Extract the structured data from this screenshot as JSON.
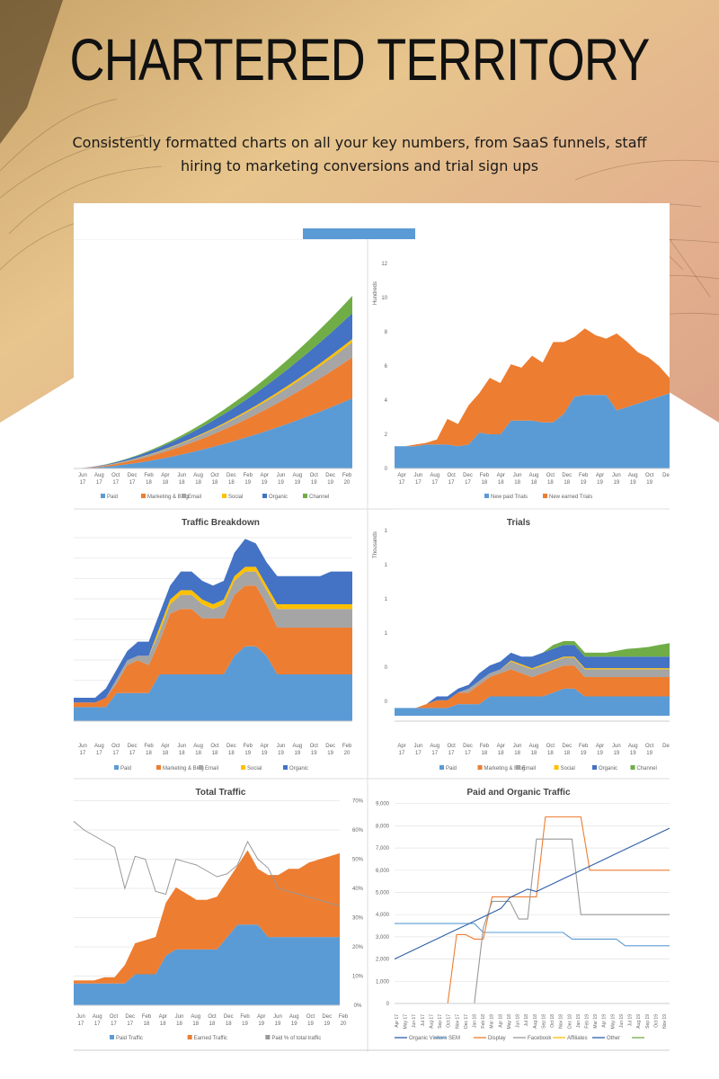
{
  "headline": "CHARTERED TERRITORY",
  "subtitle": "Consistently formatted charts on all your key numbers, from SaaS funnels, staff hiring to marketing conversions and trial sign ups",
  "colors": {
    "paid": "#5b9bd5",
    "marketing": "#ed7d31",
    "email": "#a5a5a5",
    "social": "#ffc000",
    "organic": "#4472c4",
    "channel": "#70ad47",
    "line_gray": "#999999",
    "background": "#d9b18a"
  },
  "panels": {
    "p1": {
      "title": "",
      "xticks": [
        "Jun 17",
        "Aug 17",
        "Oct 17",
        "Dec 17",
        "Feb 18",
        "Apr 18",
        "Jun 18",
        "Aug 18",
        "Oct 18",
        "Dec 18",
        "Feb 19",
        "Apr 19",
        "Jun 19",
        "Aug 19",
        "Oct 19",
        "Dec 19",
        "Feb 20"
      ],
      "legend": [
        "Paid",
        "Marketing & Blog",
        "Email",
        "Social",
        "Organic",
        "Channel"
      ]
    },
    "p2": {
      "title": "",
      "ylabel": "Hundreds",
      "yticks": [
        "0",
        "2",
        "4",
        "6",
        "8",
        "10",
        "12"
      ],
      "xticks": [
        "Apr 17",
        "Jun 17",
        "Aug 17",
        "Oct 17",
        "Dec 17",
        "Feb 18",
        "Apr 18",
        "Jun 18",
        "Aug 18",
        "Oct 18",
        "Dec 18",
        "Feb 19",
        "Apr 19",
        "Jun 19",
        "Aug 19",
        "Oct 19",
        "De"
      ],
      "legend": [
        "New paid Trials",
        "New earned Trials"
      ]
    },
    "p3": {
      "title": "Traffic Breakdown",
      "xticks": [
        "Jun 17",
        "Aug 17",
        "Oct 17",
        "Dec 17",
        "Feb 18",
        "Apr 18",
        "Jun 18",
        "Aug 18",
        "Oct 18",
        "Dec 18",
        "Feb 19",
        "Apr 19",
        "Jun 19",
        "Aug 19",
        "Oct 19",
        "Dec 19",
        "Feb 20"
      ],
      "legend": [
        "Paid",
        "Marketing & Blog",
        "Email",
        "Social",
        "Organic"
      ]
    },
    "p4": {
      "title": "Trials",
      "ylabel": "Thousands",
      "yticks": [
        "0",
        "0",
        "1",
        "1",
        "1",
        "1"
      ],
      "xticks": [
        "Apr 17",
        "Jun 17",
        "Aug 17",
        "Oct 17",
        "Dec 17",
        "Feb 18",
        "Apr 18",
        "Jun 18",
        "Aug 18",
        "Oct 18",
        "Dec 18",
        "Feb 19",
        "Apr 19",
        "Jun 19",
        "Aug 19",
        "Oct 19",
        "De"
      ],
      "legend": [
        "Paid",
        "Marketing & Blog",
        "Email",
        "Social",
        "Organic",
        "Channel"
      ]
    },
    "p5": {
      "title": "Total Traffic",
      "yticks": [
        "0%",
        "10%",
        "20%",
        "30%",
        "40%",
        "50%",
        "60%",
        "70%"
      ],
      "xticks": [
        "Jun 17",
        "Aug 17",
        "Oct 17",
        "Dec 17",
        "Feb 18",
        "Apr 18",
        "Jun 18",
        "Aug 18",
        "Oct 18",
        "Dec 18",
        "Feb 19",
        "Apr 19",
        "Jun 19",
        "Aug 19",
        "Oct 19",
        "Dec 19",
        "Feb 20"
      ],
      "legend": [
        "Paid Traffic",
        "Earned Traffic",
        "Paid % of total traffic"
      ]
    },
    "p6": {
      "title": "Paid and Organic Traffic",
      "yticks": [
        "0",
        "1,000",
        "2,000",
        "3,000",
        "4,000",
        "5,000",
        "6,000",
        "7,000",
        "8,000",
        "9,000"
      ],
      "xticks": [
        "Apr 17",
        "May 17",
        "Jun 17",
        "Jul 17",
        "Aug 17",
        "Sep 17",
        "Oct 17",
        "Nov 17",
        "Dec 17",
        "Jan 18",
        "Feb 18",
        "Mar 18",
        "Apr 18",
        "May 18",
        "Jun 18",
        "Jul 18",
        "Aug 18",
        "Sep 18",
        "Oct 18",
        "Nov 18",
        "Dec 18",
        "Jan 19",
        "Feb 19",
        "Mar 19",
        "Apr 19",
        "May 19",
        "Jun 19",
        "Jul 19",
        "Aug 19",
        "Sep 19",
        "Oct 19",
        "Nov 19"
      ],
      "legend": [
        "Organic Visitors",
        "SEM",
        "Display",
        "Facebook",
        "Affiliates",
        "Other",
        ""
      ]
    }
  }
}
